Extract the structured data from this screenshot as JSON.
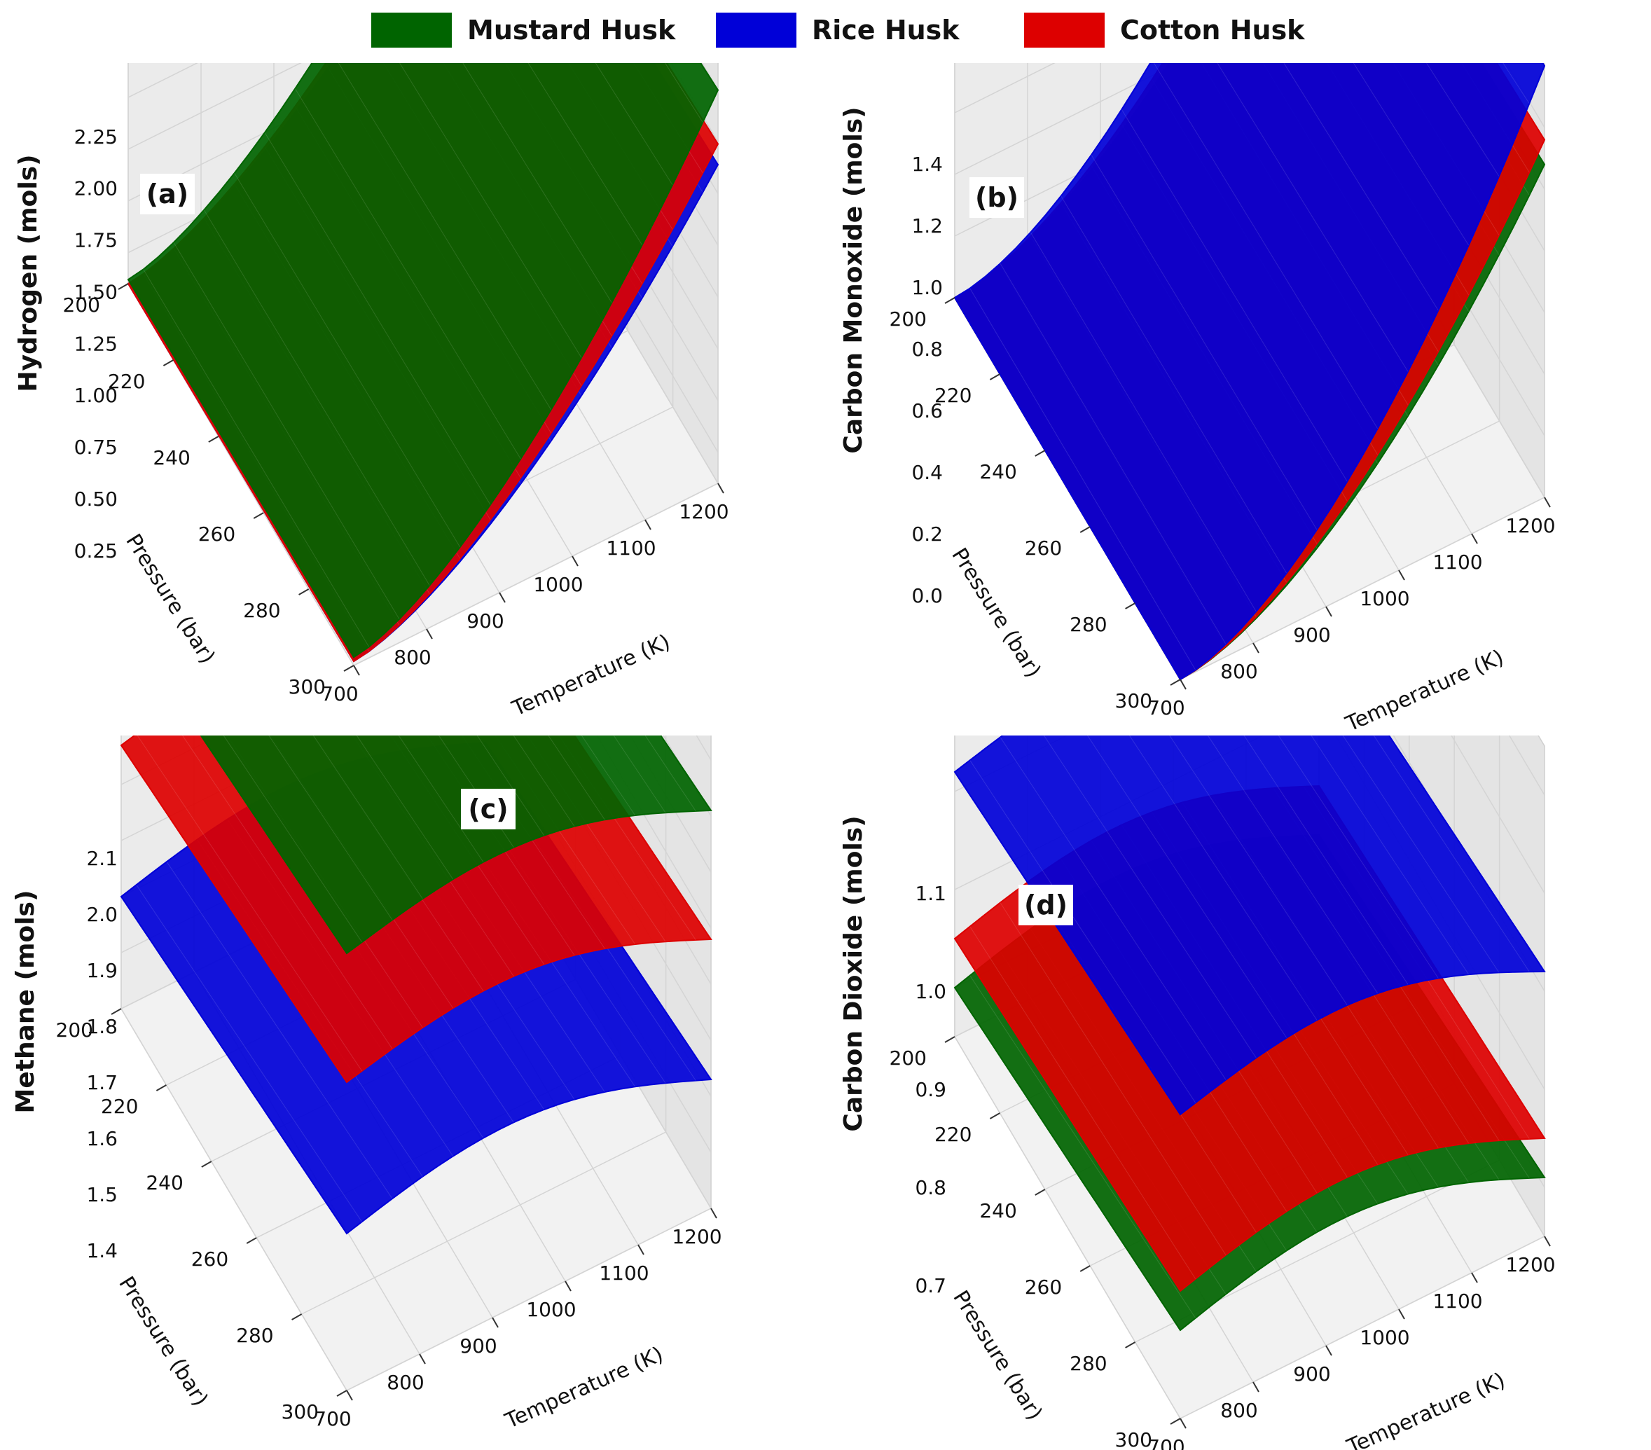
{
  "legend": {
    "items": [
      {
        "label": "Mustard Husk",
        "color": "#006400"
      },
      {
        "label": "Rice Husk",
        "color": "#0000d8"
      },
      {
        "label": "Cotton Husk",
        "color": "#dd0000"
      }
    ]
  },
  "chart_data": [
    {
      "type": "surface3d",
      "panel_label": "(a)",
      "zlabel": "Hydrogen (mols)",
      "xlabel": "Temperature (K)",
      "ylabel": "Pressure (bar)",
      "x_ticks": [
        "700",
        "800",
        "900",
        "1000",
        "1100",
        "1200"
      ],
      "y_ticks": [
        "200",
        "220",
        "240",
        "260",
        "280",
        "300"
      ],
      "z_ticks": [
        "0.25",
        "0.50",
        "0.75",
        "1.00",
        "1.25",
        "1.50",
        "1.75",
        "2.00",
        "2.25"
      ],
      "xlim": [
        700,
        1200
      ],
      "ylim": [
        200,
        300
      ],
      "zlim": [
        0.1,
        2.3
      ],
      "series": [
        {
          "name": "Rice Husk",
          "color": "#0000d8",
          "corners": {
            "T700_P200": 0.1,
            "T700_P300": 0.12,
            "T1200_P200": 1.52,
            "T1200_P300": 1.64
          }
        },
        {
          "name": "Cotton Husk",
          "color": "#dd0000",
          "corners": {
            "T700_P200": 0.1,
            "T700_P300": 0.12,
            "T1200_P200": 1.62,
            "T1200_P300": 1.74
          }
        },
        {
          "name": "Mustard Husk",
          "color": "#006400",
          "corners": {
            "T700_P200": 0.12,
            "T700_P300": 0.14,
            "T1200_P200": 1.86,
            "T1200_P300": 2.0
          }
        }
      ]
    },
    {
      "type": "surface3d",
      "panel_label": "(b)",
      "zlabel": "Carbon Monoxide (mols)",
      "xlabel": "Temperature (K)",
      "ylabel": "Pressure (bar)",
      "x_ticks": [
        "700",
        "800",
        "900",
        "1000",
        "1100",
        "1200"
      ],
      "y_ticks": [
        "200",
        "220",
        "240",
        "260",
        "280",
        "300"
      ],
      "z_ticks": [
        "0.0",
        "0.2",
        "0.4",
        "0.6",
        "0.8",
        "1.0",
        "1.2",
        "1.4"
      ],
      "xlim": [
        700,
        1200
      ],
      "ylim": [
        200,
        300
      ],
      "zlim": [
        0.0,
        1.5
      ],
      "series": [
        {
          "name": "Mustard Husk",
          "color": "#006400",
          "corners": {
            "T700_P200": 0.0,
            "T700_P300": 0.0,
            "T1200_P200": 1.02,
            "T1200_P300": 1.08
          }
        },
        {
          "name": "Cotton Husk",
          "color": "#dd0000",
          "corners": {
            "T700_P200": 0.0,
            "T700_P300": 0.0,
            "T1200_P200": 1.1,
            "T1200_P300": 1.16
          }
        },
        {
          "name": "Rice Husk",
          "color": "#0000d8",
          "corners": {
            "T700_P200": 0.0,
            "T700_P300": 0.0,
            "T1200_P200": 1.28,
            "T1200_P300": 1.4
          }
        }
      ]
    },
    {
      "type": "surface3d",
      "panel_label": "(c)",
      "zlabel": "Methane (mols)",
      "xlabel": "Temperature (K)",
      "ylabel": "Pressure (bar)",
      "x_ticks": [
        "700",
        "800",
        "900",
        "1000",
        "1100",
        "1200"
      ],
      "y_ticks": [
        "200",
        "220",
        "240",
        "260",
        "280",
        "300"
      ],
      "z_ticks": [
        "1.4",
        "1.5",
        "1.6",
        "1.7",
        "1.8",
        "1.9",
        "2.0",
        "2.1"
      ],
      "xlim": [
        700,
        1200
      ],
      "ylim": [
        200,
        300
      ],
      "zlim": [
        1.3,
        2.2
      ],
      "series": [
        {
          "name": "Rice Husk",
          "color": "#0000d8",
          "corners": {
            "T700_P200": 1.5,
            "T700_P300": 1.58,
            "T1200_P200": 1.45,
            "T1200_P300": 1.53
          }
        },
        {
          "name": "Cotton Husk",
          "color": "#dd0000",
          "corners": {
            "T700_P200": 1.77,
            "T700_P300": 1.85,
            "T1200_P200": 1.7,
            "T1200_P300": 1.78
          }
        },
        {
          "name": "Mustard Husk",
          "color": "#006400",
          "corners": {
            "T700_P200": 2.0,
            "T700_P300": 2.08,
            "T1200_P200": 1.93,
            "T1200_P300": 2.01
          }
        }
      ]
    },
    {
      "type": "surface3d",
      "panel_label": "(d)",
      "zlabel": "Carbon Dioxide (mols)",
      "xlabel": "Temperature (K)",
      "ylabel": "Pressure (bar)",
      "x_ticks": [
        "700",
        "800",
        "900",
        "1000",
        "1100",
        "1200"
      ],
      "y_ticks": [
        "200",
        "220",
        "240",
        "260",
        "280",
        "300"
      ],
      "z_ticks": [
        "0.7",
        "0.8",
        "0.9",
        "1.0",
        "1.1"
      ],
      "xlim": [
        700,
        1200
      ],
      "ylim": [
        200,
        300
      ],
      "zlim": [
        0.65,
        1.15
      ],
      "series": [
        {
          "name": "Mustard Husk",
          "color": "#006400",
          "corners": {
            "T700_P200": 0.7,
            "T700_P300": 0.74,
            "T1200_P200": 0.67,
            "T1200_P300": 0.71
          }
        },
        {
          "name": "Cotton Husk",
          "color": "#dd0000",
          "corners": {
            "T700_P200": 0.75,
            "T700_P300": 0.78,
            "T1200_P200": 0.72,
            "T1200_P300": 0.75
          }
        },
        {
          "name": "Rice Husk",
          "color": "#0000d8",
          "corners": {
            "T700_P200": 0.92,
            "T700_P300": 0.96,
            "T1200_P200": 0.88,
            "T1200_P300": 0.92
          }
        }
      ]
    }
  ]
}
